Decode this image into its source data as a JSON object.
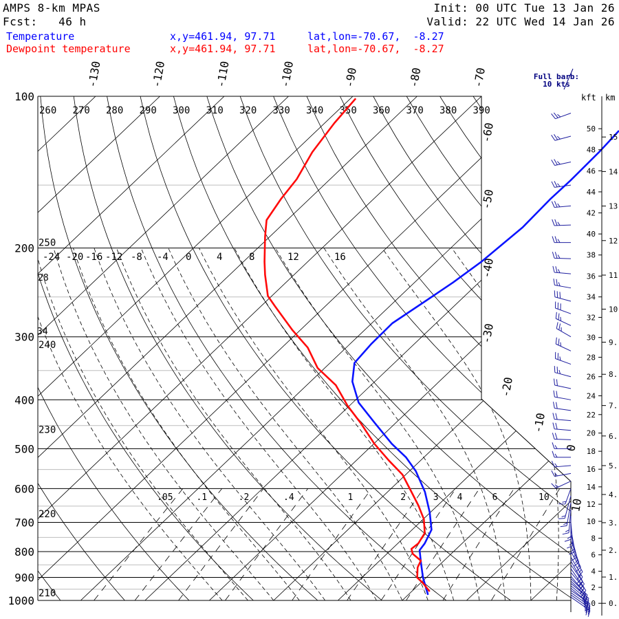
{
  "header": {
    "model": "AMPS 8-km MPAS",
    "fcst": "Fcst:   46 h",
    "init": "Init: 00 UTC Tue 13 Jan 26",
    "valid": "Valid: 22 UTC Wed 14 Jan 26"
  },
  "legend": [
    {
      "name": "Temperature",
      "coords": "x,y=461.94, 97.71",
      "latlon": "lat,lon=-70.67,  -8.27",
      "color": "#0000ff"
    },
    {
      "name": "Dewpoint temperature",
      "coords": "x,y=461.94, 97.71",
      "latlon": "lat,lon=-70.67,  -8.27",
      "color": "#ff0000"
    }
  ],
  "full_barb_label": [
    "Full barb:",
    "10 kts"
  ],
  "chart_data": {
    "type": "line",
    "subtype": "skew-T log-p",
    "ylabel": "Pressure (hPa)",
    "pressure_ticks": [
      100,
      200,
      300,
      400,
      500,
      600,
      700,
      800,
      900,
      1000
    ],
    "isotherm_labels_top": [
      -130,
      -120,
      -110,
      -100,
      -90,
      -80,
      -70
    ],
    "isotherm_labels_side": [
      -60,
      -50,
      -40,
      -30,
      -20,
      -10,
      0,
      10
    ],
    "dry_adiabat_labels_top": [
      260,
      270,
      280,
      290,
      300,
      310,
      320,
      330,
      340,
      350,
      360,
      370,
      380,
      390
    ],
    "dry_adiabat_labels_left": [
      {
        "theta": 250,
        "p": 200
      },
      {
        "theta": 240,
        "p": 300
      },
      {
        "theta": 230,
        "p": 470
      },
      {
        "theta": 220,
        "p": 690
      },
      {
        "theta": 210,
        "p": 990
      }
    ],
    "moist_adiabat_labels": [
      "-24",
      "-20",
      "-16",
      "-12",
      "-8",
      "-4",
      "0",
      "4",
      "8",
      "12",
      "16"
    ],
    "moist_adiabat_left_labels": [
      {
        "text": "28",
        "p": 245
      },
      {
        "text": "34",
        "p": 300
      }
    ],
    "mixing_ratio_labels": [
      ".05",
      ".1",
      ".2",
      ".4",
      "1",
      "2",
      "3",
      "4",
      "6",
      "10"
    ],
    "mixing_ratio_values": [
      0.05,
      0.1,
      0.2,
      0.4,
      1,
      2,
      3,
      4,
      6,
      10
    ],
    "height_axis": {
      "kft_label": "kft",
      "km_label": "km",
      "kft_ticks": [
        0,
        2,
        4,
        6,
        8,
        10,
        12,
        14,
        16,
        18,
        20,
        22,
        24,
        26,
        28,
        30,
        32,
        34,
        36,
        38,
        40,
        42,
        44,
        46,
        48,
        50
      ],
      "km_ticks": [
        "0.",
        "1.",
        "2.",
        "3.",
        "4.",
        "5.",
        "6.",
        "7.",
        "8.",
        "9.",
        "10.",
        "11.",
        "12.",
        "13.",
        "14.",
        "15."
      ]
    },
    "series": [
      {
        "name": "Temperature",
        "color": "#0a14ff",
        "points_p_T": [
          [
            975,
            3.1
          ],
          [
            901,
            -0.5
          ],
          [
            847,
            -3.0
          ],
          [
            795,
            -5.5
          ],
          [
            771,
            -5.8
          ],
          [
            724,
            -7.0
          ],
          [
            669,
            -10.1
          ],
          [
            609,
            -14.2
          ],
          [
            554,
            -19.0
          ],
          [
            520,
            -22.8
          ],
          [
            489,
            -27.2
          ],
          [
            445,
            -33.2
          ],
          [
            405,
            -39.1
          ],
          [
            368,
            -43.5
          ],
          [
            338,
            -46.2
          ],
          [
            310,
            -46.7
          ],
          [
            282,
            -46.8
          ],
          [
            257,
            -45.4
          ],
          [
            234,
            -44.0
          ],
          [
            213,
            -43.0
          ],
          [
            182,
            -42.2
          ],
          [
            160,
            -42.5
          ],
          [
            147,
            -42.4
          ],
          [
            129,
            -42.6
          ],
          [
            117,
            -43.0
          ]
        ]
      },
      {
        "name": "Dewpoint temperature",
        "color": "#ff0a0a",
        "points_p_T": [
          [
            960,
            2.8
          ],
          [
            924,
            0.4
          ],
          [
            901,
            -1.4
          ],
          [
            860,
            -3.0
          ],
          [
            834,
            -3.6
          ],
          [
            808,
            -6.0
          ],
          [
            790,
            -7.0
          ],
          [
            771,
            -6.8
          ],
          [
            735,
            -7.5
          ],
          [
            690,
            -9.9
          ],
          [
            648,
            -13.0
          ],
          [
            609,
            -16.3
          ],
          [
            563,
            -20.5
          ],
          [
            528,
            -24.9
          ],
          [
            489,
            -29.9
          ],
          [
            445,
            -35.4
          ],
          [
            411,
            -40.3
          ],
          [
            374,
            -45.5
          ],
          [
            346,
            -51.1
          ],
          [
            315,
            -56.0
          ],
          [
            291,
            -61.2
          ],
          [
            261,
            -67.8
          ],
          [
            249,
            -70.6
          ],
          [
            226,
            -74.5
          ],
          [
            213,
            -76.7
          ],
          [
            190,
            -80.7
          ],
          [
            176,
            -83.2
          ],
          [
            160,
            -84.4
          ],
          [
            146,
            -85.2
          ],
          [
            129,
            -87.2
          ],
          [
            113,
            -88.5
          ],
          [
            101,
            -89.2
          ]
        ]
      }
    ],
    "wind_barbs_p_dir_kts": [
      [
        985,
        125,
        25
      ],
      [
        975,
        125,
        25
      ],
      [
        965,
        125,
        25
      ],
      [
        955,
        125,
        25
      ],
      [
        945,
        130,
        25
      ],
      [
        935,
        130,
        25
      ],
      [
        925,
        130,
        20
      ],
      [
        915,
        135,
        20
      ],
      [
        905,
        135,
        20
      ],
      [
        895,
        140,
        20
      ],
      [
        880,
        140,
        20
      ],
      [
        865,
        145,
        20
      ],
      [
        850,
        145,
        20
      ],
      [
        835,
        150,
        20
      ],
      [
        820,
        150,
        20
      ],
      [
        800,
        150,
        15
      ],
      [
        780,
        155,
        15
      ],
      [
        760,
        160,
        15
      ],
      [
        740,
        165,
        15
      ],
      [
        720,
        170,
        15
      ],
      [
        700,
        175,
        15
      ],
      [
        680,
        180,
        15
      ],
      [
        660,
        185,
        15
      ],
      [
        640,
        190,
        15
      ],
      [
        620,
        195,
        15
      ],
      [
        600,
        200,
        15
      ],
      [
        580,
        245,
        15
      ],
      [
        560,
        260,
        15
      ],
      [
        540,
        265,
        15
      ],
      [
        520,
        270,
        15
      ],
      [
        500,
        270,
        15
      ],
      [
        480,
        272,
        20
      ],
      [
        460,
        275,
        20
      ],
      [
        440,
        275,
        20
      ],
      [
        420,
        278,
        20
      ],
      [
        400,
        280,
        20
      ],
      [
        380,
        282,
        20
      ],
      [
        360,
        285,
        25
      ],
      [
        340,
        290,
        25
      ],
      [
        320,
        295,
        25
      ],
      [
        300,
        300,
        25
      ],
      [
        285,
        295,
        25
      ],
      [
        270,
        290,
        30
      ],
      [
        255,
        285,
        30
      ],
      [
        240,
        280,
        25
      ],
      [
        225,
        275,
        25
      ],
      [
        210,
        272,
        25
      ],
      [
        195,
        270,
        25
      ],
      [
        180,
        268,
        25
      ],
      [
        165,
        265,
        25
      ],
      [
        150,
        262,
        25
      ],
      [
        135,
        258,
        25
      ],
      [
        120,
        255,
        25
      ],
      [
        108,
        250,
        25
      ]
    ],
    "ylim": [
      1000,
      100
    ],
    "grid": true
  }
}
